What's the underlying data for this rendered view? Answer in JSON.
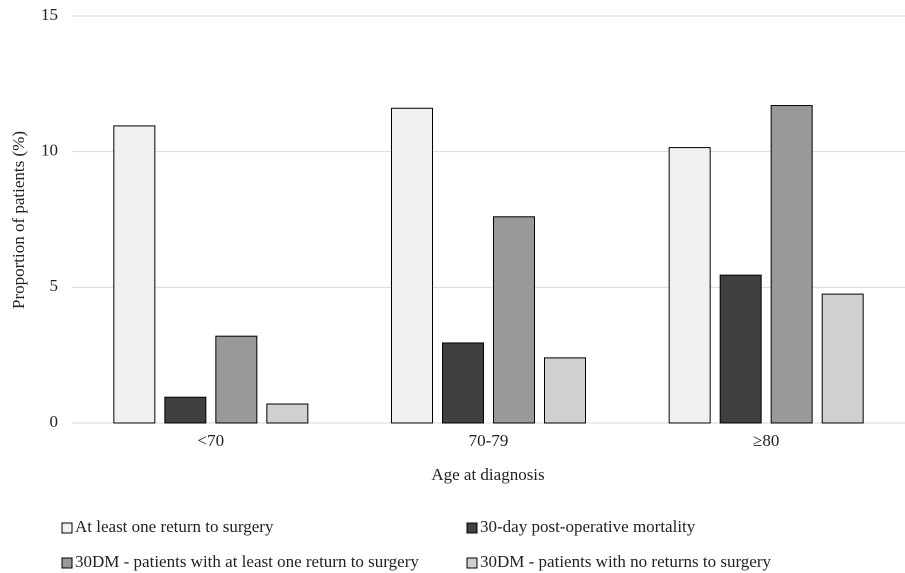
{
  "chart_data": {
    "type": "bar",
    "x_label": "Age at diagnosis",
    "y_label": "Proportion of patients (%)",
    "categories": [
      "<70",
      "70-79",
      "≥80"
    ],
    "series": [
      {
        "name": "At least one return to surgery",
        "color": "#f0f0f0",
        "values": [
          10.95,
          11.6,
          10.15
        ]
      },
      {
        "name": "30-day post-operative mortality",
        "color": "#404040",
        "values": [
          0.95,
          2.95,
          5.45
        ]
      },
      {
        "name": "30DM - patients with at least one return to surgery",
        "color": "#999999",
        "values": [
          3.2,
          7.6,
          11.7
        ]
      },
      {
        "name": "30DM - patients with no returns to surgery",
        "color": "#d0d0d0",
        "values": [
          0.7,
          2.4,
          4.75
        ]
      }
    ],
    "ylim": [
      0,
      15
    ],
    "yticks": [
      0,
      5,
      10,
      15
    ],
    "grid": true
  }
}
